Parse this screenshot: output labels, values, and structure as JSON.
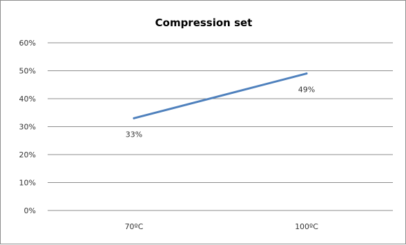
{
  "chart_data": {
    "type": "line",
    "title": "Compression set",
    "xlabel": "",
    "ylabel": "",
    "categories": [
      "70ºC",
      "100ºC"
    ],
    "series": [
      {
        "values": [
          33,
          49
        ],
        "color": "#4f81bd"
      }
    ],
    "data_labels": [
      "33%",
      "49%"
    ],
    "y_ticks": [
      "0%",
      "10%",
      "20%",
      "30%",
      "40%",
      "50%",
      "60%"
    ],
    "ylim": [
      0,
      60
    ],
    "grid": true,
    "legend": "none"
  }
}
